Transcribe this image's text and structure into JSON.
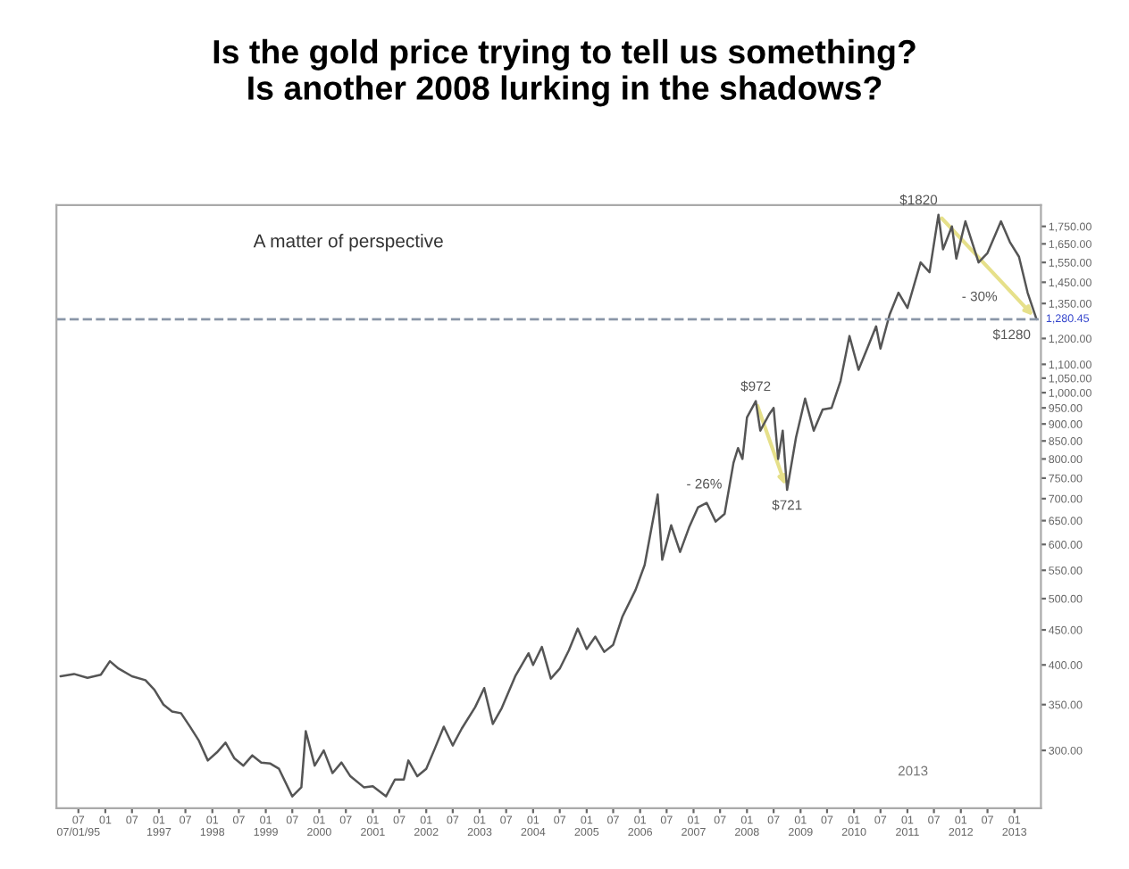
{
  "chart_data": {
    "type": "line",
    "title": "Is the gold price trying to tell us something?\nIs another 2008 lurking in the shadows?",
    "subtitle": "A matter of perspective",
    "x": [
      "1995-03",
      "1995-06",
      "1995-09",
      "1995-12",
      "1996-02",
      "1996-04",
      "1996-07",
      "1996-10",
      "1996-12",
      "1997-02",
      "1997-04",
      "1997-06",
      "1997-08",
      "1997-10",
      "1997-12",
      "1998-02",
      "1998-04",
      "1998-06",
      "1998-08",
      "1998-10",
      "1998-12",
      "1999-02",
      "1999-04",
      "1999-07",
      "1999-09",
      "1999-10",
      "1999-12",
      "2000-02",
      "2000-04",
      "2000-06",
      "2000-08",
      "2000-11",
      "2001-01",
      "2001-04",
      "2001-06",
      "2001-08",
      "2001-09",
      "2001-11",
      "2002-01",
      "2002-03",
      "2002-05",
      "2002-07",
      "2002-09",
      "2002-12",
      "2003-02",
      "2003-04",
      "2003-06",
      "2003-09",
      "2003-12",
      "2004-01",
      "2004-03",
      "2004-05",
      "2004-07",
      "2004-09",
      "2004-11",
      "2005-01",
      "2005-03",
      "2005-05",
      "2005-07",
      "2005-09",
      "2005-12",
      "2006-02",
      "2006-05",
      "2006-06",
      "2006-08",
      "2006-10",
      "2006-12",
      "2007-02",
      "2007-04",
      "2007-06",
      "2007-08",
      "2007-10",
      "2007-11",
      "2007-12",
      "2008-01",
      "2008-03",
      "2008-04",
      "2008-06",
      "2008-07",
      "2008-08",
      "2008-09",
      "2008-10",
      "2008-12",
      "2009-02",
      "2009-04",
      "2009-06",
      "2009-08",
      "2009-10",
      "2009-12",
      "2010-02",
      "2010-04",
      "2010-06",
      "2010-07",
      "2010-09",
      "2010-11",
      "2011-01",
      "2011-04",
      "2011-06",
      "2011-08",
      "2011-09",
      "2011-11",
      "2011-12",
      "2012-02",
      "2012-05",
      "2012-07",
      "2012-10",
      "2012-12",
      "2013-02",
      "2013-04",
      "2013-06"
    ],
    "series": [
      {
        "color": "#555555",
        "values": [
          385,
          388,
          383,
          387,
          405,
          395,
          385,
          380,
          368,
          350,
          342,
          340,
          325,
          310,
          290,
          298,
          308,
          292,
          285,
          295,
          288,
          287,
          282,
          257,
          265,
          320,
          285,
          300,
          278,
          288,
          275,
          265,
          266,
          257,
          272,
          272,
          290,
          275,
          282,
          302,
          325,
          305,
          323,
          347,
          370,
          328,
          346,
          385,
          416,
          400,
          425,
          382,
          395,
          420,
          452,
          422,
          440,
          418,
          428,
          470,
          515,
          560,
          710,
          570,
          640,
          585,
          635,
          680,
          690,
          648,
          665,
          790,
          830,
          800,
          920,
          972,
          880,
          930,
          950,
          800,
          880,
          721,
          860,
          980,
          880,
          945,
          950,
          1040,
          1210,
          1080,
          1160,
          1250,
          1160,
          1300,
          1400,
          1330,
          1550,
          1500,
          1820,
          1620,
          1750,
          1570,
          1780,
          1550,
          1600,
          1780,
          1660,
          1580,
          1400,
          1280
        ]
      }
    ],
    "log": true,
    "xlim": [
      "1995-02",
      "2013-07"
    ],
    "ylim": [
      247,
      1880
    ],
    "xticks": [
      {
        "value": "1995-07",
        "label": "07\n07/01/95"
      },
      {
        "value": "1996-01",
        "label": "01"
      },
      {
        "value": "1996-07",
        "label": "07"
      },
      {
        "value": "1997-01",
        "label": "01\n1997"
      },
      {
        "value": "1997-07",
        "label": "07"
      },
      {
        "value": "1998-01",
        "label": "01\n1998"
      },
      {
        "value": "1998-07",
        "label": "07"
      },
      {
        "value": "1999-01",
        "label": "01\n1999"
      },
      {
        "value": "1999-07",
        "label": "07"
      },
      {
        "value": "2000-01",
        "label": "01\n2000"
      },
      {
        "value": "2000-07",
        "label": "07"
      },
      {
        "value": "2001-01",
        "label": "01\n2001"
      },
      {
        "value": "2001-07",
        "label": "07"
      },
      {
        "value": "2002-01",
        "label": "01\n2002"
      },
      {
        "value": "2002-07",
        "label": "07"
      },
      {
        "value": "2003-01",
        "label": "01\n2003"
      },
      {
        "value": "2003-07",
        "label": "07"
      },
      {
        "value": "2004-01",
        "label": "01\n2004"
      },
      {
        "value": "2004-07",
        "label": "07"
      },
      {
        "value": "2005-01",
        "label": "01\n2005"
      },
      {
        "value": "2005-07",
        "label": "07"
      },
      {
        "value": "2006-01",
        "label": "01\n2006"
      },
      {
        "value": "2006-07",
        "label": "07"
      },
      {
        "value": "2007-01",
        "label": "01\n2007"
      },
      {
        "value": "2007-07",
        "label": "07"
      },
      {
        "value": "2008-01",
        "label": "01\n2008"
      },
      {
        "value": "2008-07",
        "label": "07"
      },
      {
        "value": "2009-01",
        "label": "01\n2009"
      },
      {
        "value": "2009-07",
        "label": "07"
      },
      {
        "value": "2010-01",
        "label": "01\n2010"
      },
      {
        "value": "2010-07",
        "label": "07"
      },
      {
        "value": "2011-01",
        "label": "01\n2011"
      },
      {
        "value": "2011-07",
        "label": "07"
      },
      {
        "value": "2012-01",
        "label": "01\n2012"
      },
      {
        "value": "2012-07",
        "label": "07"
      },
      {
        "value": "2013-01",
        "label": "01\n2013"
      }
    ],
    "yticks": [
      {
        "value": 300,
        "label": "300.00"
      },
      {
        "value": 350,
        "label": "350.00"
      },
      {
        "value": 400,
        "label": "400.00"
      },
      {
        "value": 450,
        "label": "450.00"
      },
      {
        "value": 500,
        "label": "500.00"
      },
      {
        "value": 550,
        "label": "550.00"
      },
      {
        "value": 600,
        "label": "600.00"
      },
      {
        "value": 650,
        "label": "650.00"
      },
      {
        "value": 700,
        "label": "700.00"
      },
      {
        "value": 750,
        "label": "750.00"
      },
      {
        "value": 800,
        "label": "800.00"
      },
      {
        "value": 850,
        "label": "850.00"
      },
      {
        "value": 900,
        "label": "900.00"
      },
      {
        "value": 950,
        "label": "950.00"
      },
      {
        "value": 1000,
        "label": "1,000.00"
      },
      {
        "value": 1050,
        "label": "1,050.00"
      },
      {
        "value": 1100,
        "label": "1,100.00"
      },
      {
        "value": 1200,
        "label": "1,200.00"
      },
      {
        "value": 1350,
        "label": "1,350.00"
      },
      {
        "value": 1450,
        "label": "1,450.00"
      },
      {
        "value": 1550,
        "label": "1,550.00"
      },
      {
        "value": 1650,
        "label": "1,650.00"
      },
      {
        "value": 1750,
        "label": "1,750.00"
      }
    ],
    "ref_lines": [
      {
        "axis": "y",
        "value": 1280.45,
        "label": "1,280.45",
        "color": "#8a96a8",
        "line_style": "dashed"
      }
    ],
    "annotations": [
      {
        "text": "$1820",
        "x": "2011-08",
        "y": 1820
      },
      {
        "text": "$1280",
        "x": "2013-06",
        "y": 1280
      },
      {
        "text": "$972",
        "x": "2008-03",
        "y": 972
      },
      {
        "text": "$721",
        "x": "2008-10",
        "y": 721
      },
      {
        "text": "- 30%",
        "x": "2012-03",
        "y": 1530
      },
      "- 26%",
      "2013"
    ],
    "grid": false,
    "legend": false,
    "marker": "none",
    "line_style": "solid"
  }
}
